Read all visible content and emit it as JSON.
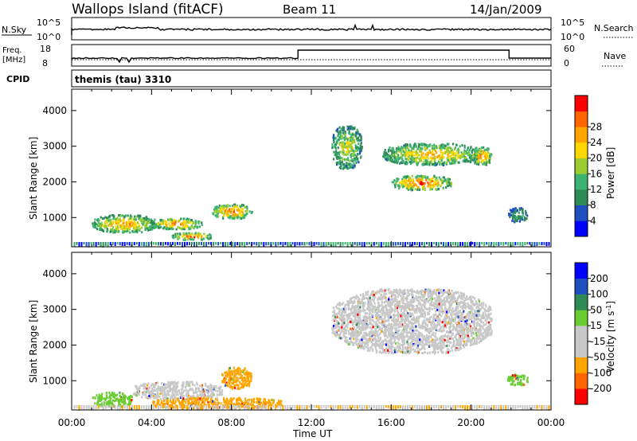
{
  "header": {
    "site_title": "Wallops Island (fitACF)",
    "beam_label": "Beam 11",
    "date": "14/Jan/2009"
  },
  "top_panels": {
    "nsky_label": "N.Sky",
    "nsky_tick_top": "10^5",
    "nsky_tick_bottom": "10^0",
    "nsearch_label": "N.Search",
    "nsearch_tick_top": "10^5",
    "nsearch_tick_bottom": "10^0",
    "freq_label": "Freq.",
    "freq_unit": "[MHz]",
    "freq_tick_top": "18",
    "freq_tick_bottom": "8",
    "nave_label": "Nave",
    "nave_tick_top": "60",
    "nave_tick_bottom": "0",
    "cpid_label": "CPID",
    "cpid_value": "themis (tau) 3310"
  },
  "colors": {
    "power_scale": [
      "#0000ff",
      "#1f4fbf",
      "#2e8b57",
      "#3cb371",
      "#9acd32",
      "#ffd700",
      "#ffa500",
      "#ff6600",
      "#ff0000"
    ],
    "velocity_scale": [
      "#0000ff",
      "#1f4fbf",
      "#2e8b57",
      "#6acd32",
      "#c8c8c8",
      "#c8c8c8",
      "#ffa500",
      "#ff6600",
      "#ff0000"
    ]
  },
  "chart_data": [
    {
      "type": "heatmap",
      "ylabel": "Slant Range [km]",
      "xlabel": "Time UT",
      "x_ticks": [
        "00:00",
        "04:00",
        "08:00",
        "12:00",
        "16:00",
        "20:00",
        "00:00"
      ],
      "y_ticks": [
        1000,
        2000,
        3000,
        4000
      ],
      "ylim": [
        180,
        4600
      ],
      "xlim_hours": [
        0,
        24
      ],
      "colorbar": {
        "label": "Power [dB]",
        "ticks": [
          4,
          8,
          12,
          16,
          20,
          24,
          28
        ]
      },
      "echo_regions": [
        {
          "t_start": 1.0,
          "t_end": 4.2,
          "range_start": 600,
          "range_end": 1100,
          "peak_db": 24
        },
        {
          "t_start": 4.0,
          "t_end": 6.5,
          "range_start": 700,
          "range_end": 1000,
          "peak_db": 26
        },
        {
          "t_start": 5.0,
          "t_end": 7.0,
          "range_start": 400,
          "range_end": 600,
          "peak_db": 28
        },
        {
          "t_start": 7.0,
          "t_end": 9.0,
          "range_start": 1000,
          "range_end": 1400,
          "peak_db": 26
        },
        {
          "t_start": 13.0,
          "t_end": 14.5,
          "range_start": 2400,
          "range_end": 3600,
          "peak_db": 18
        },
        {
          "t_start": 15.5,
          "t_end": 20.5,
          "range_start": 2500,
          "range_end": 3100,
          "peak_db": 22
        },
        {
          "t_start": 16.0,
          "t_end": 19.0,
          "range_start": 1800,
          "range_end": 2200,
          "peak_db": 28
        },
        {
          "t_start": 20.0,
          "t_end": 21.0,
          "range_start": 2500,
          "range_end": 3000,
          "peak_db": 26
        },
        {
          "t_start": 21.8,
          "t_end": 22.8,
          "range_start": 900,
          "range_end": 1300,
          "peak_db": 12
        }
      ]
    },
    {
      "type": "heatmap",
      "ylabel": "Slant Range [km]",
      "xlabel": "Time UT",
      "x_ticks": [
        "00:00",
        "04:00",
        "08:00",
        "12:00",
        "16:00",
        "20:00",
        "00:00"
      ],
      "y_ticks": [
        1000,
        2000,
        3000,
        4000
      ],
      "ylim": [
        180,
        4600
      ],
      "xlim_hours": [
        0,
        24
      ],
      "colorbar": {
        "label": "Velocity [m s^-1]",
        "ticks": [
          200,
          100,
          50,
          15,
          -15,
          -50,
          -100,
          -200
        ]
      },
      "echo_regions": [
        {
          "t_start": 1.0,
          "t_end": 3.0,
          "range_start": 300,
          "range_end": 700,
          "velocity": 50
        },
        {
          "t_start": 3.0,
          "t_end": 7.5,
          "range_start": 500,
          "range_end": 1000,
          "velocity": 0
        },
        {
          "t_start": 4.0,
          "t_end": 10.5,
          "range_start": 250,
          "range_end": 550,
          "velocity": -50
        },
        {
          "t_start": 7.5,
          "t_end": 9.0,
          "range_start": 800,
          "range_end": 1400,
          "velocity": -50
        },
        {
          "t_start": 13.0,
          "t_end": 21.0,
          "range_start": 1800,
          "range_end": 3600,
          "velocity": 0
        },
        {
          "t_start": 21.8,
          "t_end": 22.8,
          "range_start": 900,
          "range_end": 1200,
          "velocity": 50
        }
      ]
    }
  ]
}
